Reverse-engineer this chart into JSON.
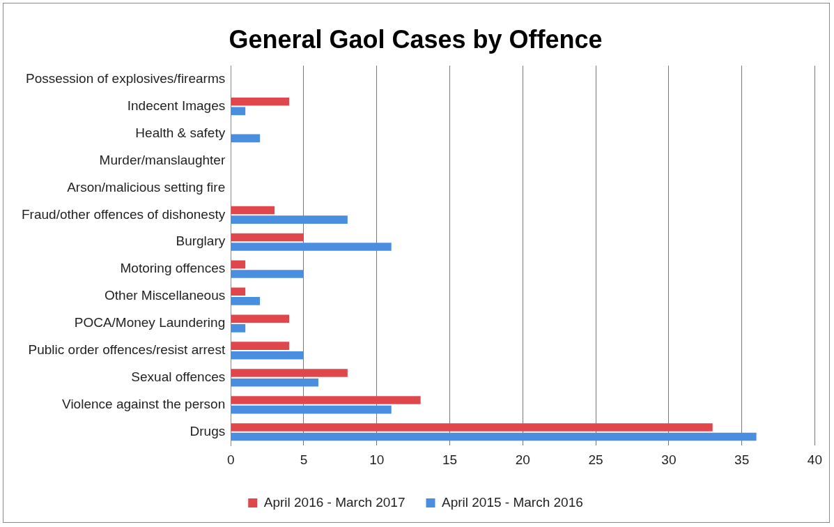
{
  "chart_data": {
    "type": "bar",
    "orientation": "horizontal",
    "title": "General Gaol Cases by Offence",
    "categories": [
      "Possession of explosives/firearms",
      "Indecent Images",
      "Health & safety",
      "Murder/manslaughter",
      "Arson/malicious setting fire",
      "Fraud/other offences of dishonesty",
      "Burglary",
      "Motoring offences",
      "Other Miscellaneous",
      "POCA/Money Laundering",
      "Public order offences/resist arrest",
      "Sexual offences",
      "Violence against the person",
      "Drugs"
    ],
    "series": [
      {
        "name": "April 2016 - March 2017",
        "color": "#e0474c",
        "values": [
          0,
          4,
          0,
          0,
          0,
          3,
          5,
          1,
          1,
          4,
          4,
          8,
          13,
          33
        ]
      },
      {
        "name": "April 2015 - March 2016",
        "color": "#4a8ee0",
        "values": [
          0,
          1,
          2,
          0,
          0,
          8,
          11,
          5,
          2,
          1,
          5,
          6,
          11,
          36
        ]
      }
    ],
    "xlim": [
      0,
      40
    ],
    "xticks": [
      0,
      5,
      10,
      15,
      20,
      25,
      30,
      35,
      40
    ],
    "grid": "x",
    "legend": "bottom"
  }
}
